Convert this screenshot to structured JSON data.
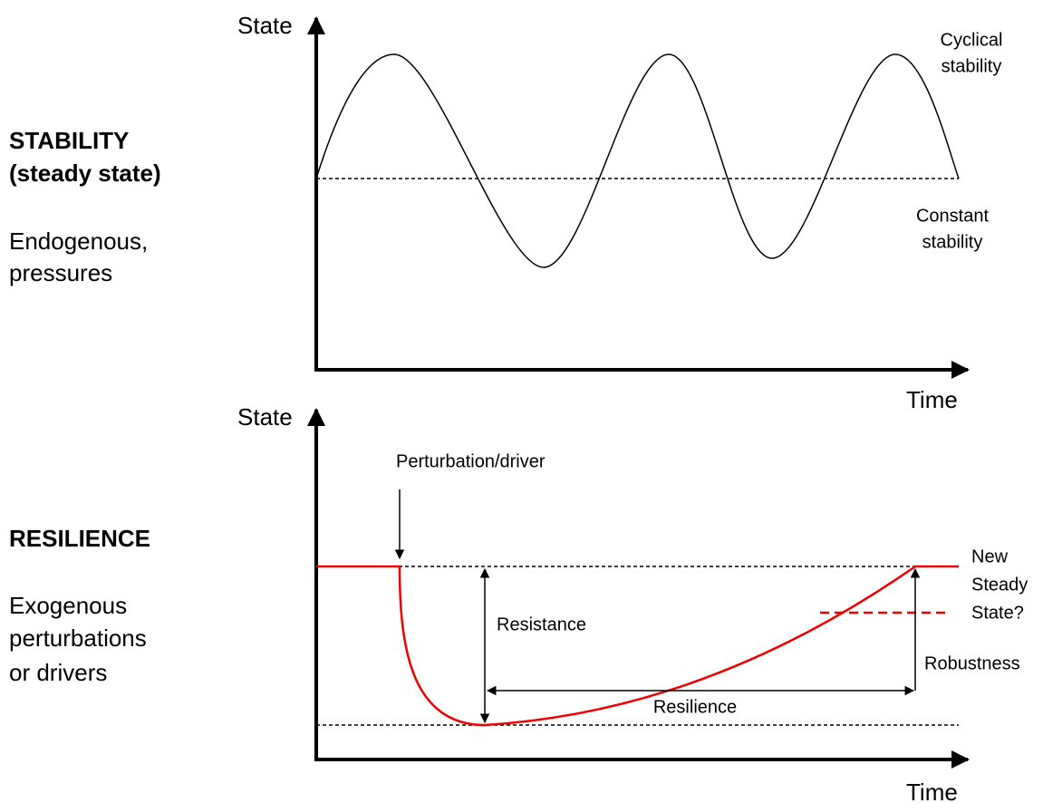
{
  "stability_panel": {
    "heading": [
      "STABILITY",
      "(steady state)"
    ],
    "description": [
      "Endogenous,",
      "pressures"
    ],
    "y_axis_label": "State",
    "x_axis_label": "Time",
    "cyclical_label": [
      "Cyclical",
      "stability"
    ],
    "constant_label": [
      "Constant",
      "stability"
    ]
  },
  "resilience_panel": {
    "heading": "RESILIENCE",
    "description": [
      "Exogenous",
      "perturbations",
      "or drivers"
    ],
    "y_axis_label": "State",
    "x_axis_label": "Time",
    "perturbation_label": "Perturbation/driver",
    "resistance_label": "Resistance",
    "resilience_label": "Resilience",
    "robustness_label": "Robustness",
    "new_state_label": [
      "New",
      "Steady",
      "State?"
    ]
  }
}
